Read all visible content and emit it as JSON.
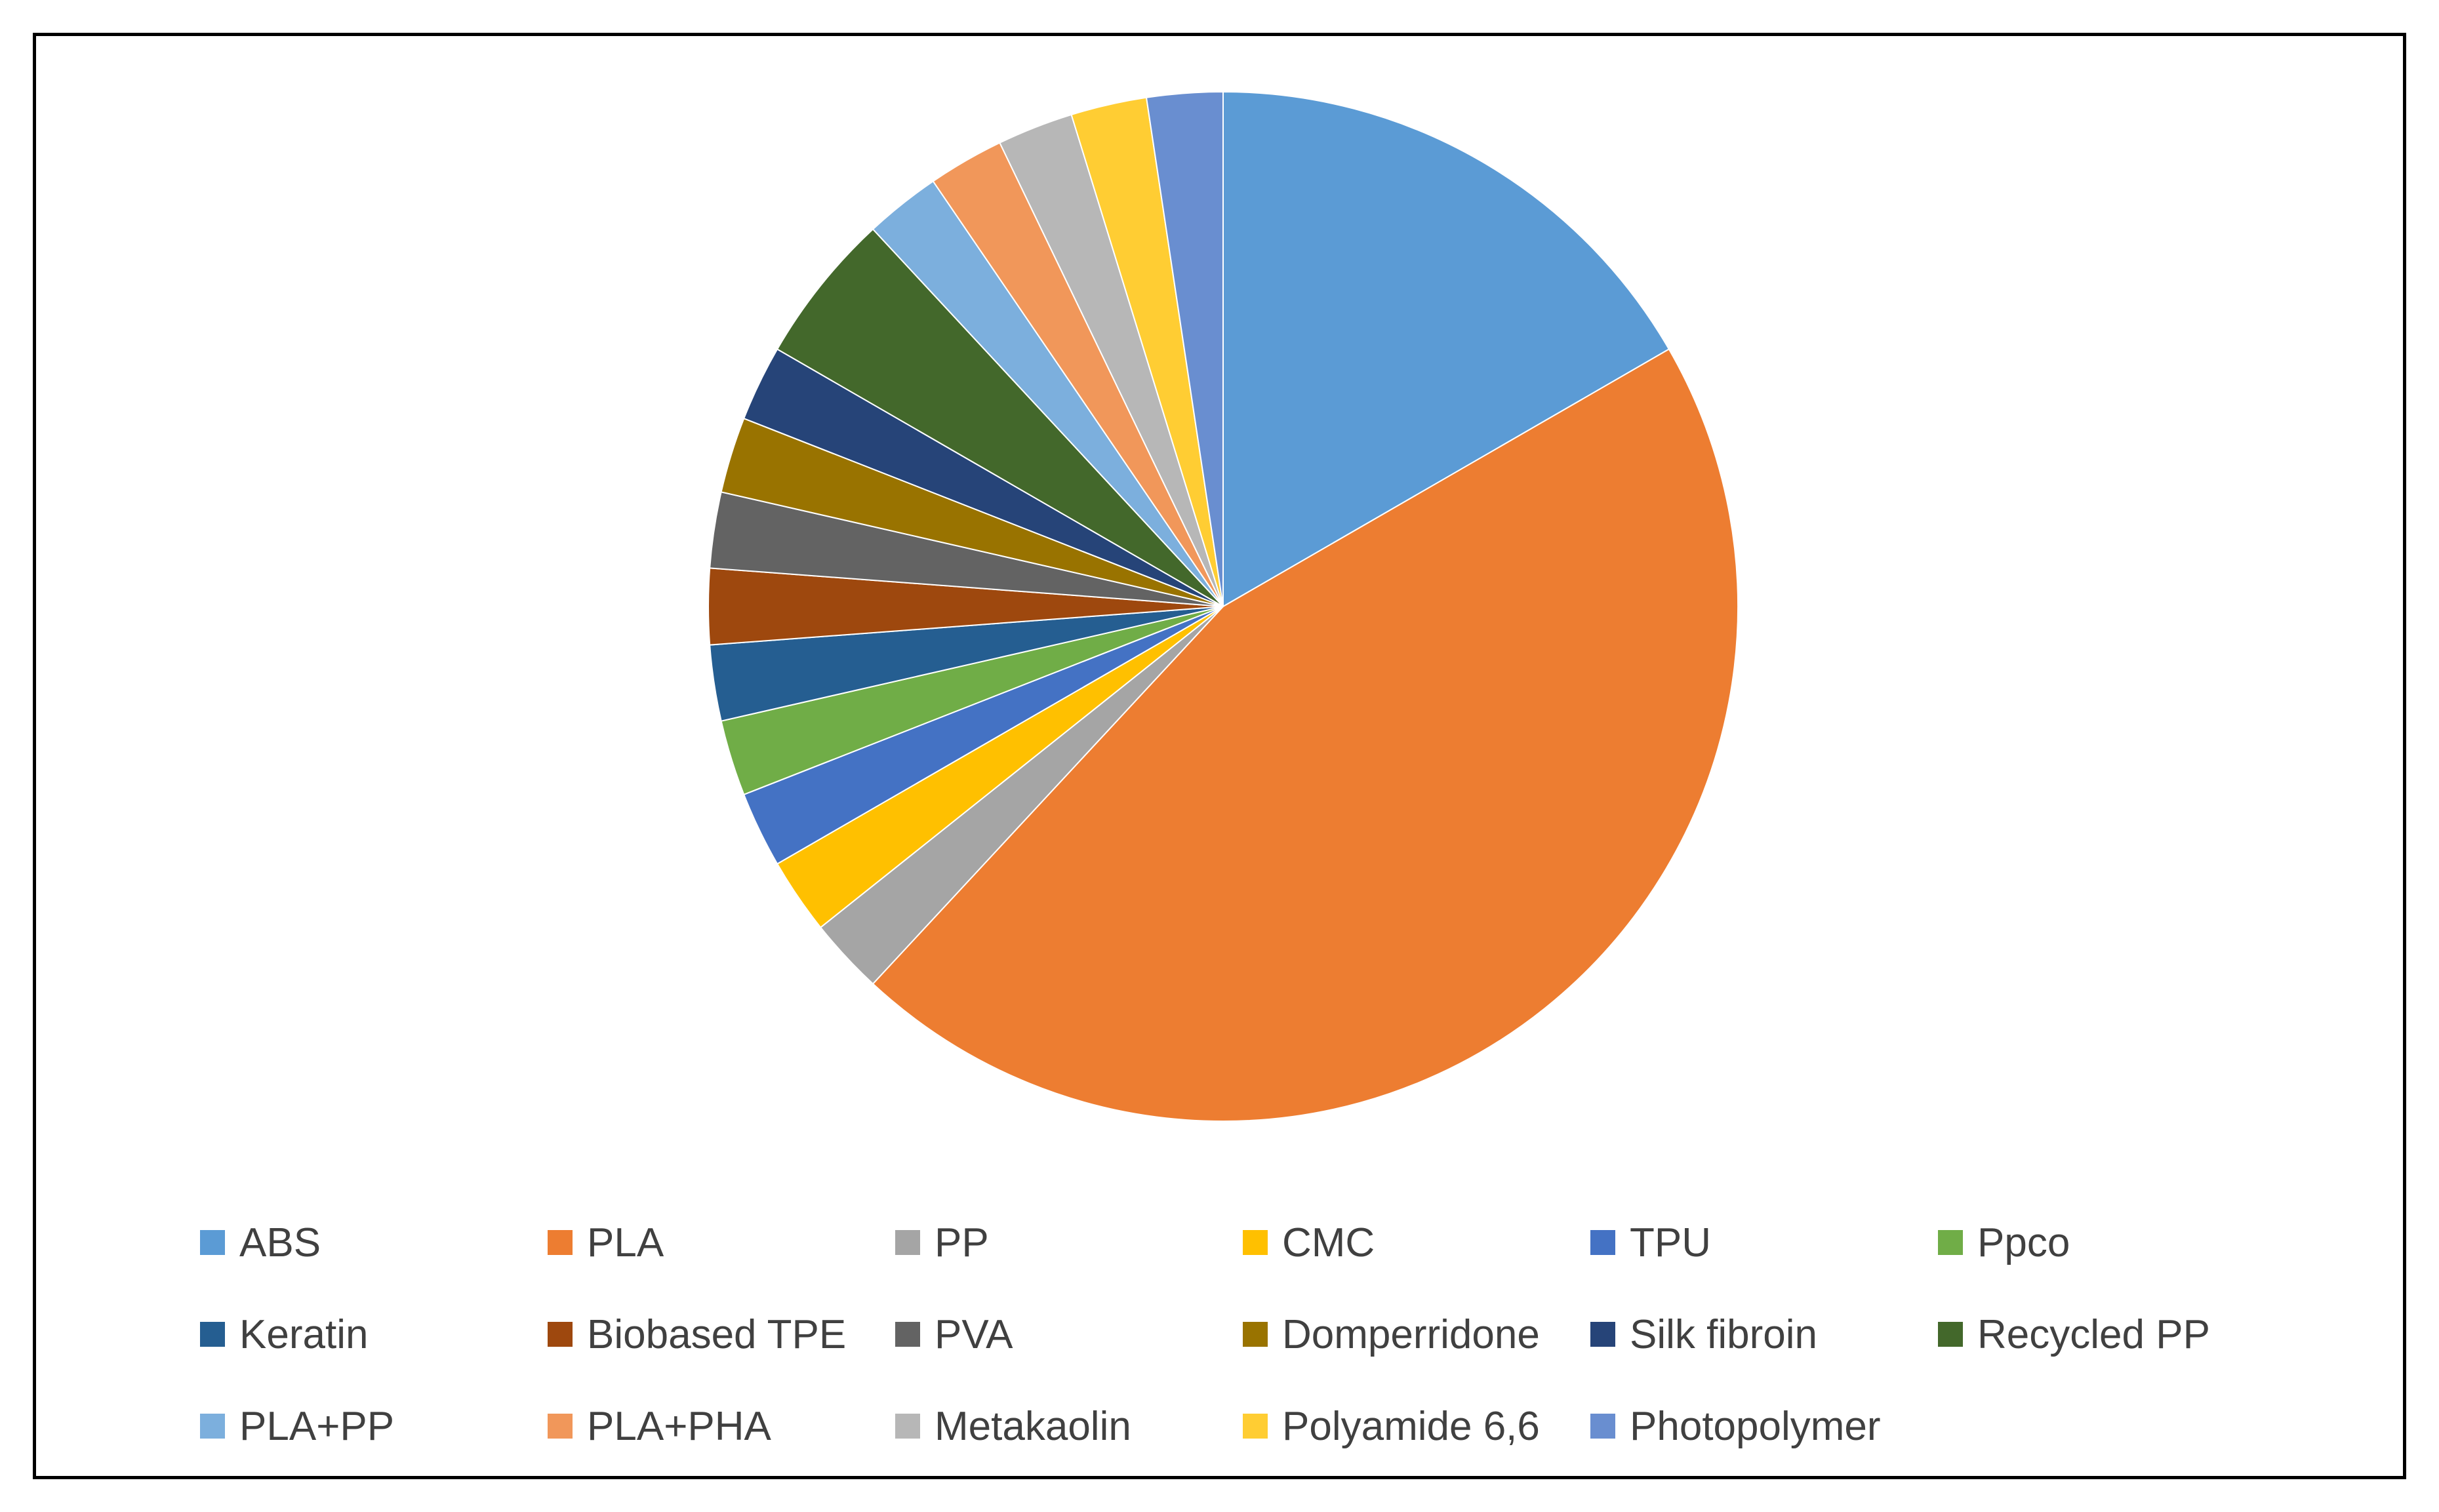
{
  "chart_data": {
    "type": "pie",
    "title": "",
    "start_angle_deg": 0,
    "direction": "clockwise",
    "legend_position": "bottom",
    "categories": [
      "ABS",
      "PLA",
      "PP",
      "CMC",
      "TPU",
      "Ppco",
      "Keratin",
      "Biobased TPE",
      "PVA",
      "Domperridone",
      "Silk fibroin",
      "Recycled PP",
      "PLA+PP",
      "PLA+PHA",
      "Metakaolin",
      "Polyamide 6,6",
      "Photopolymer"
    ],
    "values": [
      7,
      19,
      1,
      1,
      1,
      1,
      1,
      1,
      1,
      1,
      1,
      2,
      1,
      1,
      1,
      1,
      1
    ],
    "colors": [
      "#5B9BD5",
      "#ED7D31",
      "#A5A5A5",
      "#FFC000",
      "#4472C4",
      "#70AD47",
      "#255E91",
      "#9E480E",
      "#636363",
      "#997300",
      "#264478",
      "#43682B",
      "#7CAFDD",
      "#F1975A",
      "#B7B7B7",
      "#FFCD33",
      "#698ED0"
    ]
  }
}
